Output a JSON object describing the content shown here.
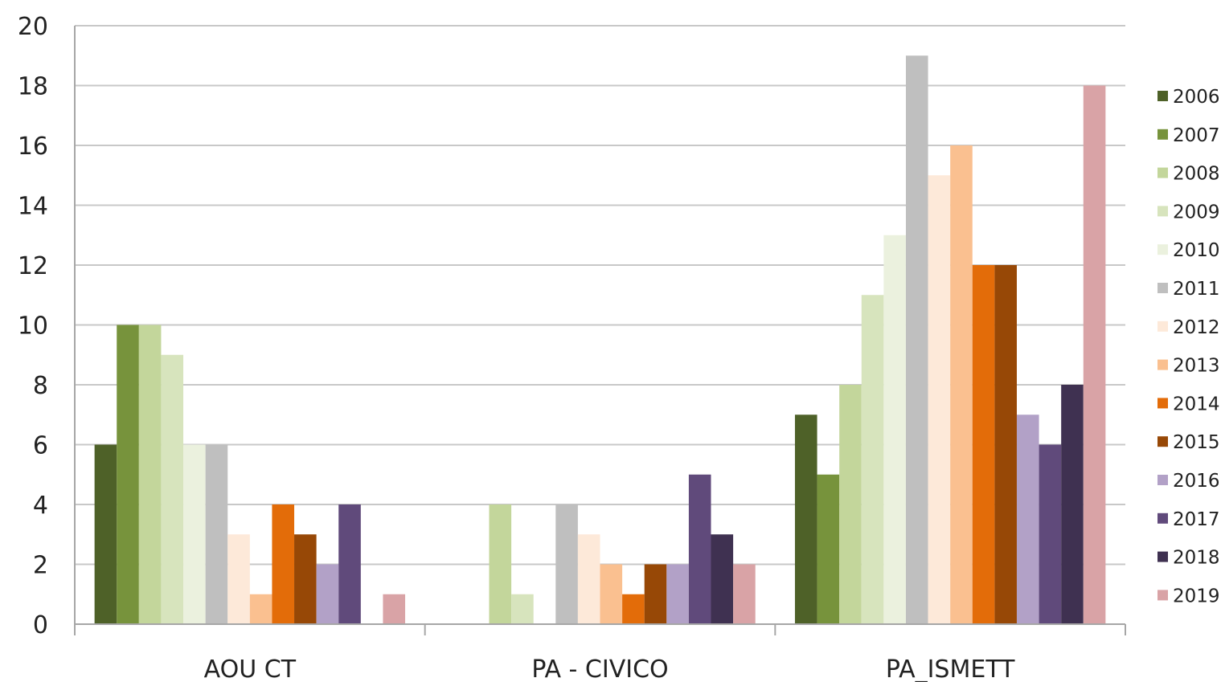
{
  "chart_data": {
    "type": "bar",
    "title": "",
    "xlabel": "",
    "ylabel": "",
    "ylim": [
      0,
      20
    ],
    "y_ticks": [
      0,
      2,
      4,
      6,
      8,
      10,
      12,
      14,
      16,
      18,
      20
    ],
    "grid": true,
    "legend_position": "right",
    "categories": [
      "AOU CT",
      "PA - CIVICO",
      "PA_ISMETT"
    ],
    "series": [
      {
        "name": "2006",
        "color": "#4e6128",
        "values": [
          6,
          0,
          7
        ]
      },
      {
        "name": "2007",
        "color": "#77933c",
        "values": [
          10,
          0,
          5
        ]
      },
      {
        "name": "2008",
        "color": "#c3d69b",
        "values": [
          10,
          4,
          8
        ]
      },
      {
        "name": "2009",
        "color": "#d7e4bd",
        "values": [
          9,
          1,
          11
        ]
      },
      {
        "name": "2010",
        "color": "#ebf1de",
        "values": [
          6,
          0,
          13
        ]
      },
      {
        "name": "2011",
        "color": "#bfbfbf",
        "values": [
          6,
          4,
          19
        ]
      },
      {
        "name": "2012",
        "color": "#fde9d9",
        "values": [
          3,
          3,
          15
        ]
      },
      {
        "name": "2013",
        "color": "#fac090",
        "values": [
          1,
          2,
          16
        ]
      },
      {
        "name": "2014",
        "color": "#e36c09",
        "values": [
          4,
          1,
          12
        ]
      },
      {
        "name": "2015",
        "color": "#974806",
        "values": [
          3,
          2,
          12
        ]
      },
      {
        "name": "2016",
        "color": "#b2a1c7",
        "values": [
          2,
          2,
          7
        ]
      },
      {
        "name": "2017",
        "color": "#604a7b",
        "values": [
          4,
          5,
          6
        ]
      },
      {
        "name": "2018",
        "color": "#3f3151",
        "values": [
          0,
          3,
          8
        ]
      },
      {
        "name": "2019",
        "color": "#d9a3a6",
        "values": [
          1,
          2,
          18
        ]
      }
    ]
  }
}
